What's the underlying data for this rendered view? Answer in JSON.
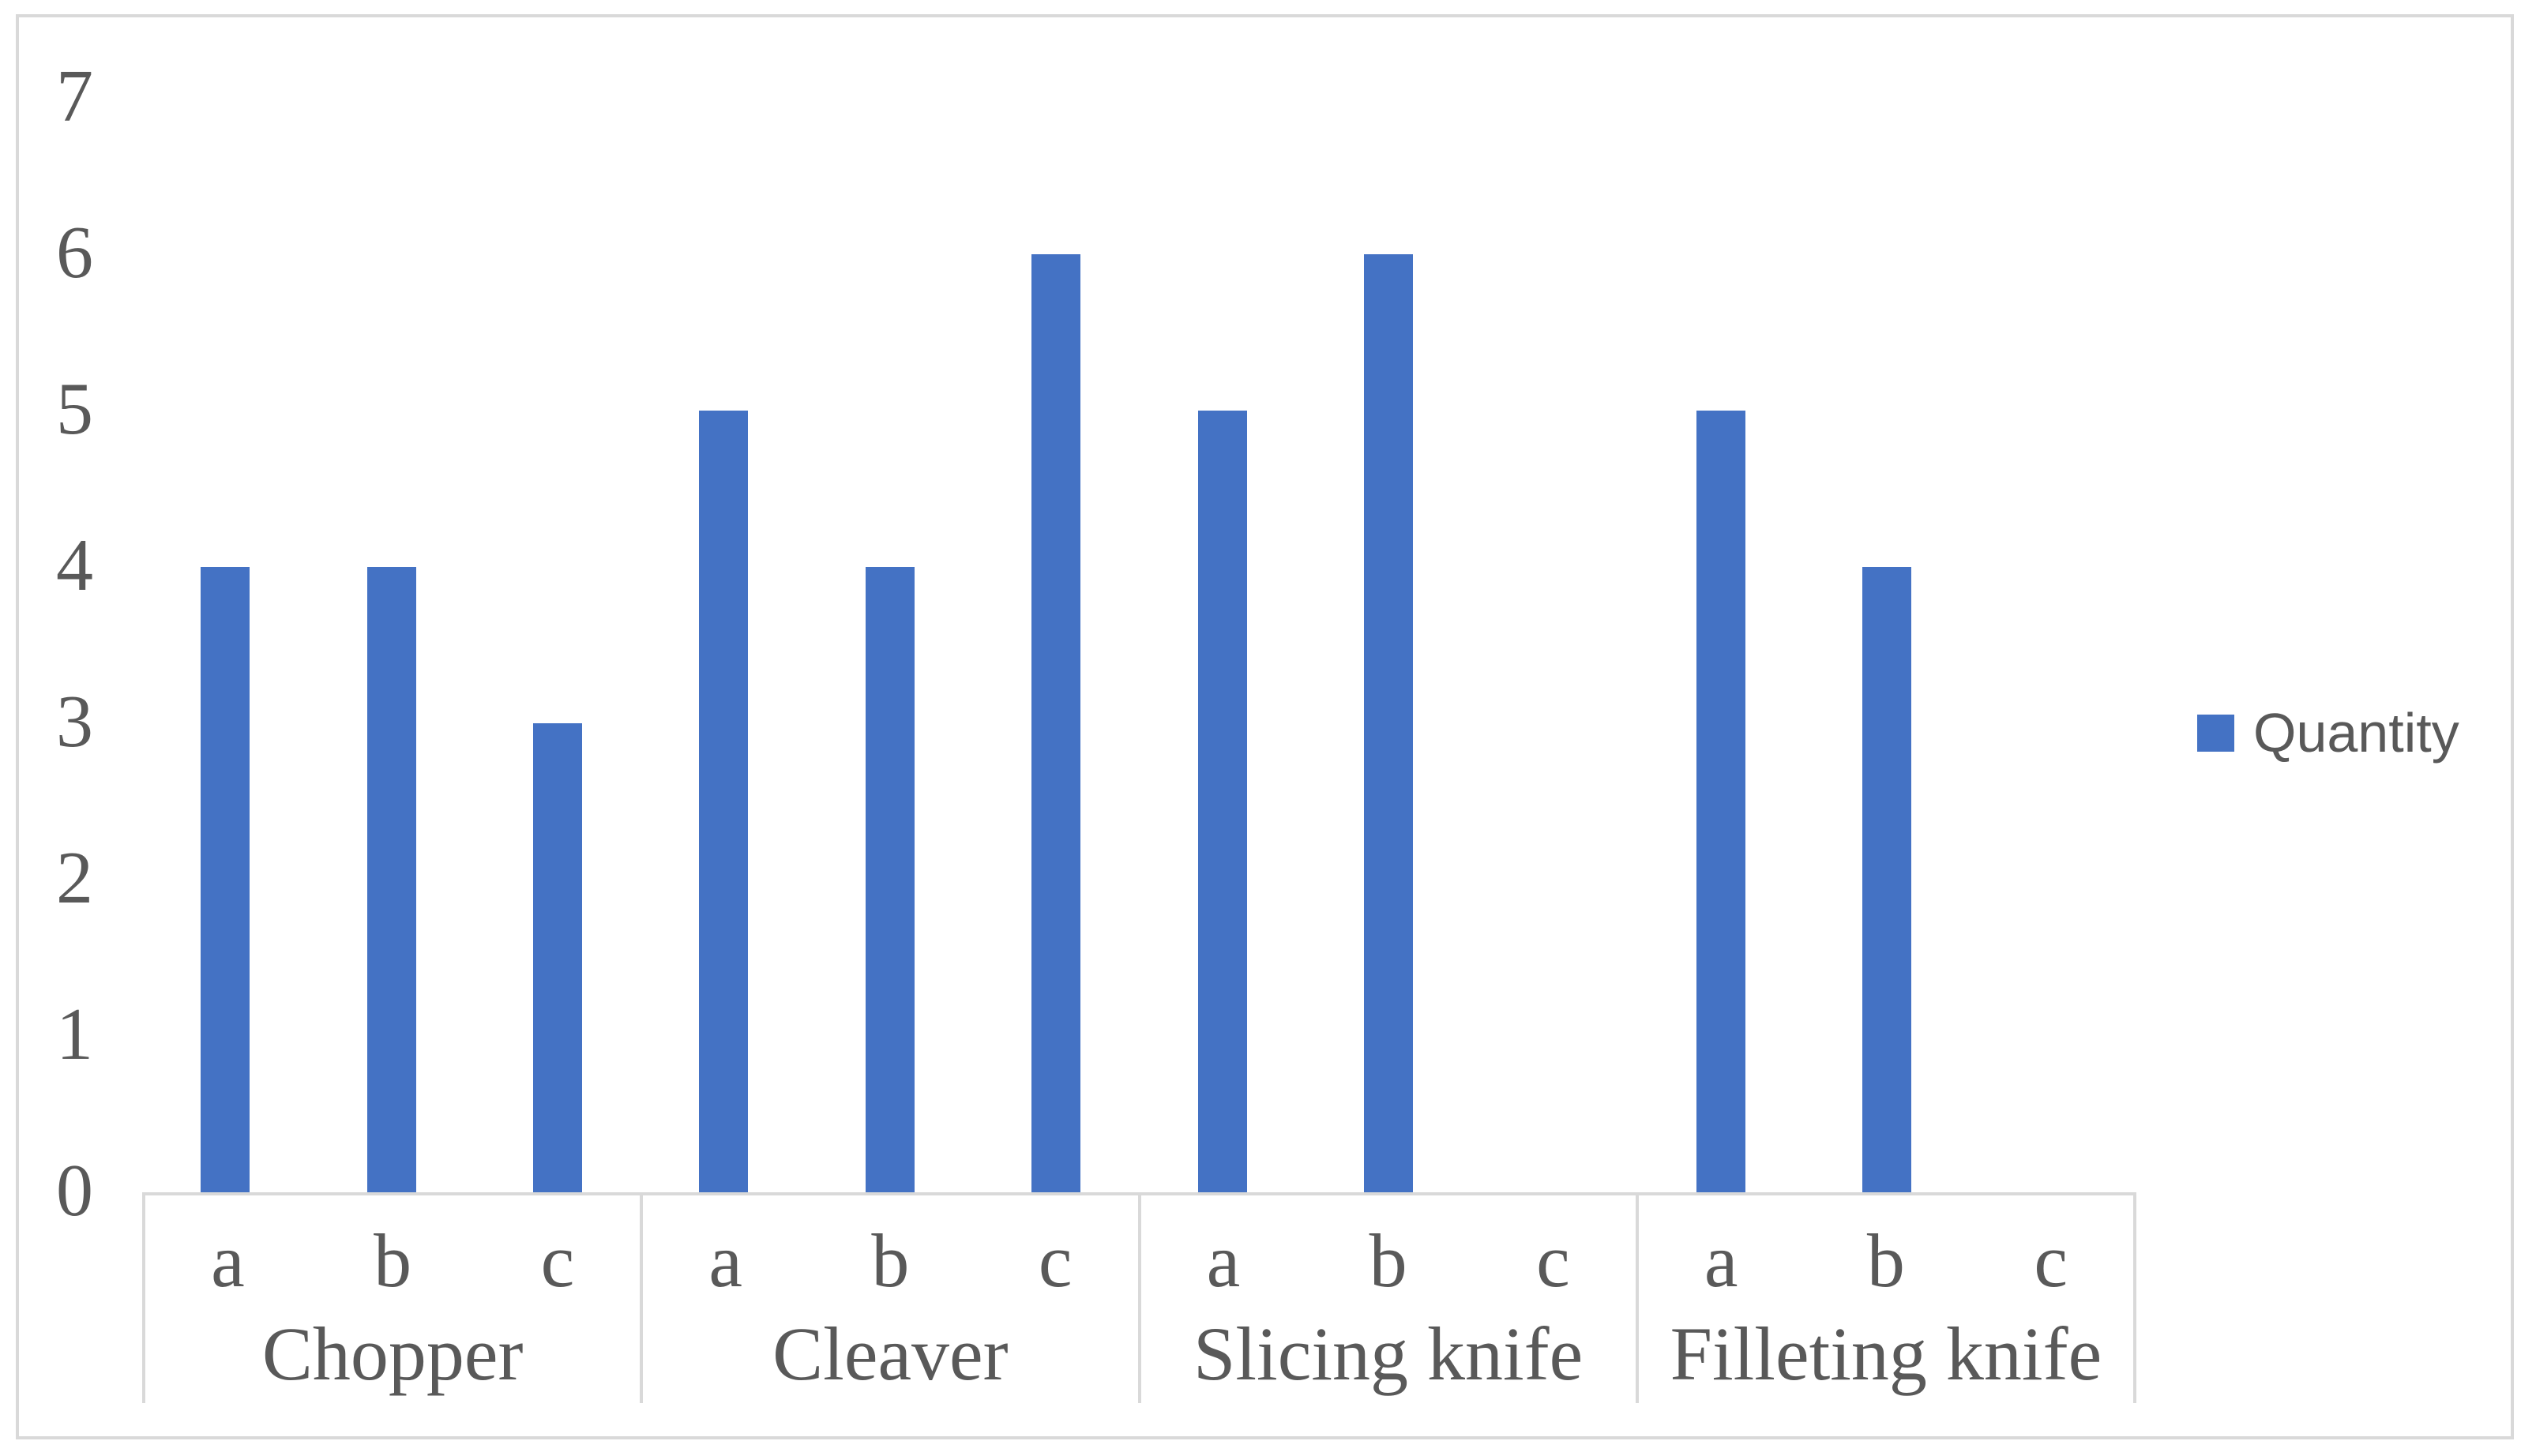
{
  "chart_data": {
    "type": "bar",
    "title": "",
    "grid": false,
    "y_axis": {
      "min": 0,
      "max": 7,
      "tick_step": 1,
      "ticks": [
        0,
        1,
        2,
        3,
        4,
        5,
        6,
        7
      ]
    },
    "x_axis": {
      "groups": [
        {
          "label": "Chopper",
          "subcategories": [
            "a",
            "b",
            "c"
          ]
        },
        {
          "label": "Cleaver",
          "subcategories": [
            "a",
            "b",
            "c"
          ]
        },
        {
          "label": "Slicing knife",
          "subcategories": [
            "a",
            "b",
            "c"
          ]
        },
        {
          "label": "Filleting knife",
          "subcategories": [
            "a",
            "b",
            "c"
          ]
        }
      ]
    },
    "series": [
      {
        "name": "Quantity",
        "color": "#4472C4",
        "values_by_group": {
          "Chopper": [
            4,
            4,
            3
          ],
          "Cleaver": [
            5,
            4,
            6
          ],
          "Slicing knife": [
            5,
            6,
            0
          ],
          "Filleting knife": [
            5,
            4,
            0
          ]
        }
      }
    ],
    "legend": {
      "label": "Quantity",
      "position": "right",
      "swatch_color": "#4472C4"
    }
  },
  "colors": {
    "bar": "#4472C4",
    "axis_line": "#D9D9D9",
    "figure_border": "#D9D9D9",
    "text": "#595959",
    "background": "#FFFFFF"
  }
}
